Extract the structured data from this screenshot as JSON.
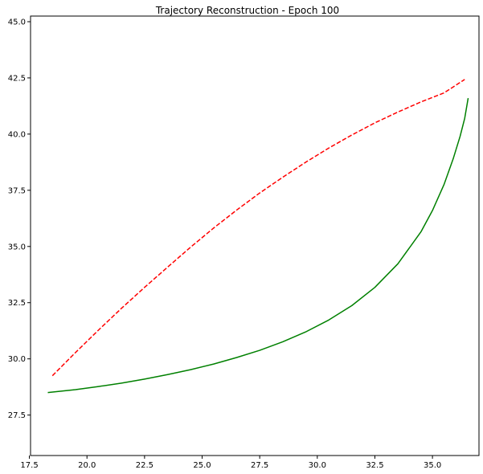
{
  "chart_data": {
    "type": "line",
    "title": "Trajectory Reconstruction - Epoch 100",
    "xlabel": "",
    "ylabel": "",
    "xlim": [
      17.55,
      37.02
    ],
    "ylim": [
      25.7,
      45.25
    ],
    "grid": false,
    "xticks": [
      17.5,
      20.0,
      22.5,
      25.0,
      27.5,
      30.0,
      32.5,
      35.0
    ],
    "yticks": [
      27.5,
      30.0,
      32.5,
      35.0,
      37.5,
      40.0,
      42.5,
      45.0
    ],
    "xtick_labels": [
      "17.5",
      "20.0",
      "22.5",
      "25.0",
      "27.5",
      "30.0",
      "32.5",
      "35.0"
    ],
    "ytick_labels": [
      "27.5",
      "30.0",
      "32.5",
      "35.0",
      "37.5",
      "40.0",
      "42.5",
      "45.0"
    ],
    "series": [
      {
        "color": "#ff0000",
        "linestyle": "dashed",
        "x": [
          18.5,
          19.5,
          20.5,
          21.5,
          22.5,
          23.5,
          24.5,
          25.5,
          26.5,
          27.5,
          28.5,
          29.5,
          30.5,
          31.5,
          32.5,
          33.5,
          34.5,
          35.5,
          36.4
        ],
        "y": [
          29.25,
          30.28,
          31.28,
          32.25,
          33.18,
          34.08,
          34.97,
          35.82,
          36.62,
          37.38,
          38.08,
          38.75,
          39.38,
          39.96,
          40.5,
          40.98,
          41.43,
          41.83,
          42.43
        ]
      },
      {
        "color": "#008000",
        "linestyle": "solid",
        "x": [
          18.3,
          19.5,
          20.5,
          21.5,
          22.5,
          23.5,
          24.5,
          25.5,
          26.5,
          27.5,
          28.5,
          29.5,
          30.5,
          31.5,
          32.5,
          33.5,
          34.5,
          35.0,
          35.5,
          35.9,
          36.2,
          36.4,
          36.55
        ],
        "y": [
          28.5,
          28.63,
          28.77,
          28.92,
          29.1,
          29.3,
          29.52,
          29.77,
          30.06,
          30.38,
          30.76,
          31.2,
          31.73,
          32.37,
          33.18,
          34.23,
          35.65,
          36.6,
          37.75,
          38.9,
          39.9,
          40.7,
          41.6
        ]
      }
    ]
  }
}
